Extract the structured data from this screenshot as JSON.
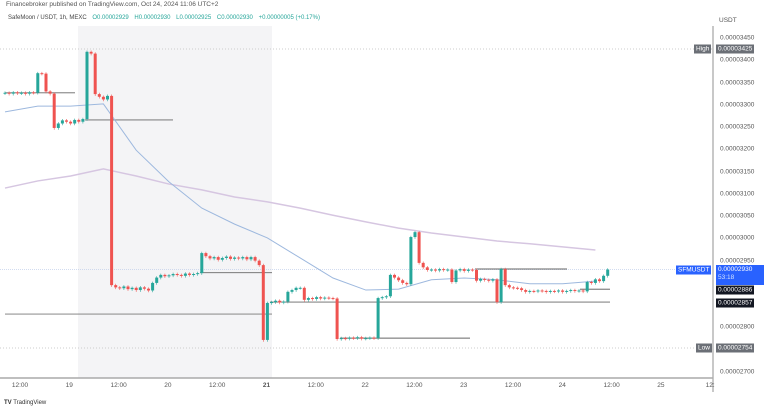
{
  "header": {
    "published": "Financebroker published on TradingView.com, Oct 24, 2024 11:06 UTC+2",
    "symbol": "SafeMoon / USDT, 1h, MEXC",
    "open": "O0.00002929",
    "high": "H0.00002930",
    "low": "L0.00002925",
    "close": "C0.00002930",
    "change": "+0.00000005 (+0.17%)"
  },
  "price_axis": {
    "unit": "USDT",
    "ticks": [
      "0.00003450",
      "0.00003400",
      "0.00003350",
      "0.00003300",
      "0.00003250",
      "0.00003200",
      "0.00003150",
      "0.00003100",
      "0.00003050",
      "0.00003000",
      "0.00002950",
      "0.00002800",
      "0.00002700"
    ],
    "high_label": "High",
    "high_value": "0.00003425",
    "low_label": "Low",
    "low_value": "0.00002754",
    "symbol_label": "SFMUSDT",
    "last_value": "0.00002930",
    "countdown": "53:18",
    "level_1": "0.00002886",
    "level_2": "0.00002857"
  },
  "time_axis": [
    "12:00",
    "19",
    "12:00",
    "20",
    "12:00",
    "21",
    "12:00",
    "22",
    "12:00",
    "23",
    "12:00",
    "24",
    "12:00",
    "25",
    "12:"
  ],
  "footer": {
    "brand": "TradingView"
  },
  "colors": {
    "up": "#26a69a",
    "down": "#ef5350",
    "ma_fast": "#9db8de",
    "ma_slow": "#d6c6e1",
    "last_price": "#2962ff"
  },
  "chart_data": {
    "type": "candlestick",
    "timeframe": "1h",
    "ylim": [
      2.7e-05,
      3.45e-05
    ],
    "first_open": 3.326e-05,
    "closes": [
      3.327e-05,
      3.325e-05,
      3.328e-05,
      3.326e-05,
      3.327e-05,
      3.325e-05,
      3.328e-05,
      3.327e-05,
      3.371e-05,
      3.37e-05,
      3.33e-05,
      3.325e-05,
      3.248e-05,
      3.258e-05,
      3.265e-05,
      3.262e-05,
      3.258e-05,
      3.266e-05,
      3.262e-05,
      3.268e-05,
      3.419e-05,
      3.415e-05,
      3.324e-05,
      3.318e-05,
      3.312e-05,
      3.32e-05,
      2.895e-05,
      2.89e-05,
      2.888e-05,
      2.892e-05,
      2.886e-05,
      2.889e-05,
      2.884e-05,
      2.89e-05,
      2.887e-05,
      2.883e-05,
      2.9e-05,
      2.912e-05,
      2.918e-05,
      2.915e-05,
      2.917e-05,
      2.92e-05,
      2.918e-05,
      2.916e-05,
      2.921e-05,
      2.918e-05,
      2.92e-05,
      2.922e-05,
      2.967e-05,
      2.96e-05,
      2.955e-05,
      2.958e-05,
      2.952e-05,
      2.956e-05,
      2.959e-05,
      2.954e-05,
      2.957e-05,
      2.955e-05,
      2.958e-05,
      2.953e-05,
      2.958e-05,
      2.95e-05,
      2.94e-05,
      2.772e-05,
      2.855e-05,
      2.857e-05,
      2.86e-05,
      2.856e-05,
      2.858e-05,
      2.88e-05,
      2.884e-05,
      2.889e-05,
      2.889e-05,
      2.862e-05,
      2.866e-05,
      2.864e-05,
      2.868e-05,
      2.865e-05,
      2.867e-05,
      2.866e-05,
      2.865e-05,
      2.774e-05,
      2.776e-05,
      2.775e-05,
      2.777e-05,
      2.776e-05,
      2.778e-05,
      2.775e-05,
      2.776e-05,
      2.777e-05,
      2.776e-05,
      2.866e-05,
      2.868e-05,
      2.87e-05,
      2.918e-05,
      2.912e-05,
      2.906e-05,
      2.9e-05,
      2.897e-05,
      3.003e-05,
      3.014e-05,
      2.945e-05,
      2.935e-05,
      2.929e-05,
      2.93e-05,
      2.928e-05,
      2.931e-05,
      2.929e-05,
      2.93e-05,
      2.902e-05,
      2.928e-05,
      2.931e-05,
      2.927e-05,
      2.93e-05,
      2.929e-05,
      2.905e-05,
      2.909e-05,
      2.907e-05,
      2.905e-05,
      2.908e-05,
      2.857e-05,
      2.931e-05,
      2.895e-05,
      2.89e-05,
      2.889e-05,
      2.888e-05,
      2.884e-05,
      2.88e-05,
      2.882e-05,
      2.881e-05,
      2.883e-05,
      2.882e-05,
      2.88e-05,
      2.882e-05,
      2.881e-05,
      2.883e-05,
      2.88e-05,
      2.882e-05,
      2.884e-05,
      2.882e-05,
      2.883e-05,
      2.881e-05,
      2.902e-05,
      2.9e-05,
      2.908e-05,
      2.904e-05,
      2.916e-05,
      2.93e-05
    ],
    "ma_fast_every_8h": [
      3.284e-05,
      3.297e-05,
      3.297e-05,
      3.302e-05,
      3.198e-05,
      3.127e-05,
      3.068e-05,
      3.032e-05,
      3.001e-05,
      2.956e-05,
      2.911e-05,
      2.884e-05,
      2.886e-05,
      2.907e-05,
      2.911e-05,
      2.907e-05,
      2.898e-05,
      2.898e-05,
      2.904e-05
    ],
    "ma_slow_every_8h": [
      3.113e-05,
      3.129e-05,
      3.14e-05,
      3.156e-05,
      3.14e-05,
      3.122e-05,
      3.109e-05,
      3.093e-05,
      3.082e-05,
      3.068e-05,
      3.052e-05,
      3.037e-05,
      3.023e-05,
      3.012e-05,
      3.003e-05,
      2.994e-05,
      2.988e-05,
      2.981e-05,
      2.974e-05
    ],
    "levels": [
      3.327e-05,
      3.266e-05,
      2.923e-05,
      2.83e-05,
      2.93e-05,
      2.776e-05,
      2.886e-05,
      2.857e-05
    ]
  }
}
